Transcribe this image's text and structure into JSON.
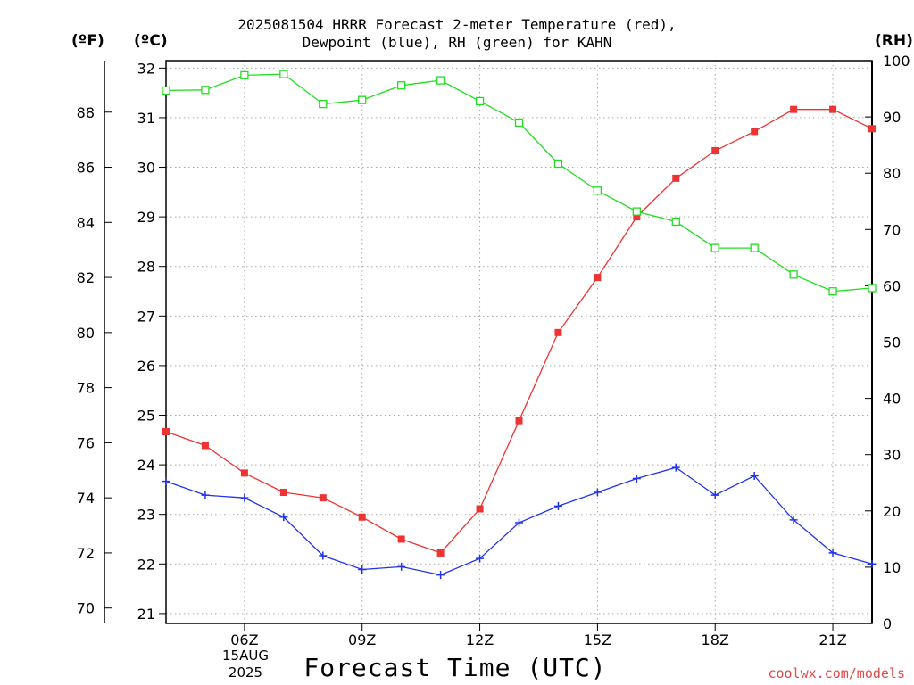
{
  "chart_data": {
    "type": "line",
    "title_lines": [
      "2025081504 HRRR Forecast 2-meter Temperature (red),",
      "Dewpoint (blue), RH (green) for KAHN"
    ],
    "xlabel": "Forecast Time (UTC)",
    "left_unit_f": "(ºF)",
    "left_unit_c": "(ºC)",
    "right_unit": "(RH)",
    "date_label_lines": [
      "15AUG",
      "2025"
    ],
    "credit": "coolwx.com/models",
    "x_hours": [
      4,
      5,
      6,
      7,
      8,
      9,
      10,
      11,
      12,
      13,
      14,
      15,
      16,
      17,
      18,
      19,
      20,
      21,
      22
    ],
    "x_range": [
      4,
      22
    ],
    "x_ticks": [
      {
        "hour": 6,
        "label": "06Z"
      },
      {
        "hour": 9,
        "label": "09Z"
      },
      {
        "hour": 12,
        "label": "12Z"
      },
      {
        "hour": 15,
        "label": "15Z"
      },
      {
        "hour": 18,
        "label": "18Z"
      },
      {
        "hour": 21,
        "label": "21Z"
      }
    ],
    "celsius_range": [
      20.8,
      32.15
    ],
    "celsius_ticks": [
      "21",
      "22",
      "23",
      "24",
      "25",
      "26",
      "27",
      "28",
      "29",
      "30",
      "31",
      "32"
    ],
    "fahrenheit_ticks": [
      "70",
      "72",
      "74",
      "76",
      "78",
      "80",
      "82",
      "84",
      "86",
      "88"
    ],
    "rh_range": [
      0,
      100
    ],
    "rh_ticks": [
      "0",
      "10",
      "20",
      "30",
      "40",
      "50",
      "60",
      "70",
      "80",
      "90",
      "100"
    ],
    "grid": true,
    "series": [
      {
        "name": "Temperature",
        "axis": "fahrenheit",
        "color": "#ee3333",
        "marker": "filled-square",
        "values": [
          76.4,
          75.9,
          74.9,
          74.2,
          74.0,
          73.3,
          72.5,
          72.0,
          73.6,
          76.8,
          80.0,
          82.0,
          84.2,
          85.6,
          86.6,
          87.3,
          88.1,
          88.1,
          87.4
        ]
      },
      {
        "name": "Dewpoint",
        "axis": "fahrenheit",
        "color": "#2233ee",
        "marker": "plus",
        "values": [
          74.6,
          74.1,
          74.0,
          73.3,
          71.9,
          71.4,
          71.5,
          71.2,
          71.8,
          73.1,
          73.7,
          74.2,
          74.7,
          75.1,
          74.1,
          74.8,
          73.2,
          72.0,
          71.6
        ]
      },
      {
        "name": "RH",
        "axis": "rh",
        "color": "#22dd22",
        "marker": "open-square",
        "values": [
          94.7,
          94.8,
          97.4,
          97.6,
          92.3,
          93.0,
          95.6,
          96.5,
          92.8,
          89.0,
          81.7,
          76.9,
          73.2,
          71.4,
          66.7,
          66.7,
          62.0,
          59.0,
          59.6
        ]
      }
    ]
  }
}
